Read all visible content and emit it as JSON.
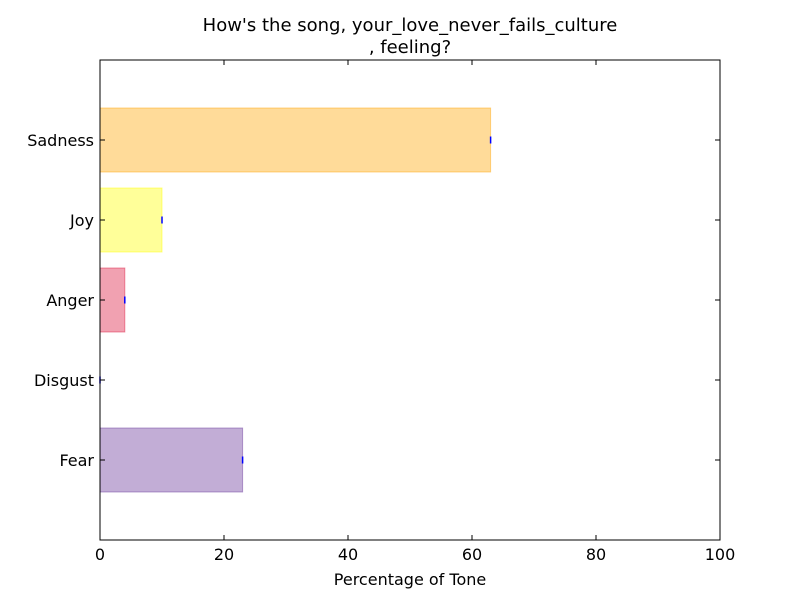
{
  "chart_data": {
    "type": "bar",
    "orientation": "horizontal",
    "title_lines": [
      "How's the song, your_love_never_fails_culture",
      ", feeling?"
    ],
    "xlabel": "Percentage of Tone",
    "ylabel": "",
    "xlim": [
      0,
      100
    ],
    "xticks": [
      0,
      20,
      40,
      60,
      80,
      100
    ],
    "grid": false,
    "categories": [
      "Sadness",
      "Joy",
      "Anger",
      "Disgust",
      "Fear"
    ],
    "values": [
      63,
      10,
      4,
      0,
      23
    ],
    "colors": [
      "#ffa500",
      "#ffff00",
      "#dc143c",
      "#228b22",
      "#663399"
    ],
    "bar_opacity": 0.4,
    "error_color": "#0000ff"
  }
}
